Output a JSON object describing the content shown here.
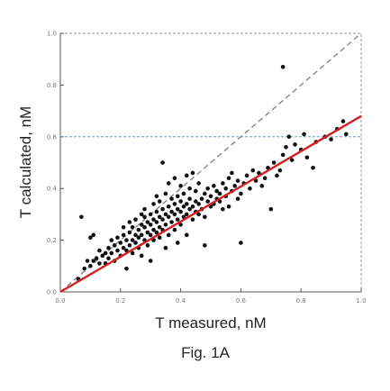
{
  "chart_data": {
    "type": "scatter",
    "title": "",
    "caption": "Fig. 1A",
    "xlabel": "T measured, nM",
    "ylabel": "T calculated, nM",
    "xlim": [
      0.0,
      1.0
    ],
    "ylim": [
      0.0,
      1.0
    ],
    "x_ticks": [
      "0.0",
      "0.2",
      "0.4",
      "0.6",
      "0.8",
      "1.0"
    ],
    "y_ticks": [
      "0.0",
      "0.2",
      "0.4",
      "0.6",
      "0.8",
      "1.0"
    ],
    "grid": false,
    "reference_lines": [
      {
        "kind": "identity",
        "style": "dashed",
        "color": "#888888",
        "from": [
          0.0,
          0.0
        ],
        "to": [
          1.0,
          1.0
        ]
      },
      {
        "kind": "regression",
        "style": "solid",
        "color": "#d42020",
        "from": [
          0.0,
          0.0
        ],
        "to": [
          1.0,
          0.68
        ]
      },
      {
        "kind": "horizontal",
        "style": "dashed",
        "color": "#5b86c9",
        "y": 0.6
      }
    ],
    "points": [
      [
        0.06,
        0.05
      ],
      [
        0.07,
        0.29
      ],
      [
        0.08,
        0.09
      ],
      [
        0.09,
        0.12
      ],
      [
        0.1,
        0.21
      ],
      [
        0.1,
        0.1
      ],
      [
        0.11,
        0.22
      ],
      [
        0.11,
        0.12
      ],
      [
        0.12,
        0.13
      ],
      [
        0.13,
        0.11
      ],
      [
        0.13,
        0.16
      ],
      [
        0.14,
        0.14
      ],
      [
        0.15,
        0.15
      ],
      [
        0.15,
        0.11
      ],
      [
        0.16,
        0.13
      ],
      [
        0.16,
        0.17
      ],
      [
        0.17,
        0.15
      ],
      [
        0.17,
        0.2
      ],
      [
        0.18,
        0.12
      ],
      [
        0.18,
        0.18
      ],
      [
        0.19,
        0.16
      ],
      [
        0.19,
        0.21
      ],
      [
        0.2,
        0.14
      ],
      [
        0.2,
        0.19
      ],
      [
        0.21,
        0.17
      ],
      [
        0.21,
        0.22
      ],
      [
        0.21,
        0.25
      ],
      [
        0.22,
        0.16
      ],
      [
        0.22,
        0.2
      ],
      [
        0.22,
        0.09
      ],
      [
        0.23,
        0.18
      ],
      [
        0.23,
        0.23
      ],
      [
        0.23,
        0.27
      ],
      [
        0.24,
        0.2
      ],
      [
        0.24,
        0.15
      ],
      [
        0.24,
        0.25
      ],
      [
        0.25,
        0.22
      ],
      [
        0.25,
        0.19
      ],
      [
        0.25,
        0.28
      ],
      [
        0.26,
        0.24
      ],
      [
        0.26,
        0.17
      ],
      [
        0.26,
        0.21
      ],
      [
        0.27,
        0.26
      ],
      [
        0.27,
        0.22
      ],
      [
        0.27,
        0.3
      ],
      [
        0.27,
        0.14
      ],
      [
        0.28,
        0.25
      ],
      [
        0.28,
        0.2
      ],
      [
        0.28,
        0.29
      ],
      [
        0.28,
        0.32
      ],
      [
        0.29,
        0.23
      ],
      [
        0.29,
        0.27
      ],
      [
        0.29,
        0.18
      ],
      [
        0.3,
        0.26
      ],
      [
        0.3,
        0.22
      ],
      [
        0.3,
        0.3
      ],
      [
        0.3,
        0.12
      ],
      [
        0.31,
        0.28
      ],
      [
        0.31,
        0.24
      ],
      [
        0.31,
        0.34
      ],
      [
        0.31,
        0.2
      ],
      [
        0.32,
        0.27
      ],
      [
        0.32,
        0.23
      ],
      [
        0.32,
        0.31
      ],
      [
        0.32,
        0.37
      ],
      [
        0.33,
        0.29
      ],
      [
        0.33,
        0.25
      ],
      [
        0.33,
        0.21
      ],
      [
        0.33,
        0.35
      ],
      [
        0.34,
        0.28
      ],
      [
        0.34,
        0.32
      ],
      [
        0.34,
        0.24
      ],
      [
        0.34,
        0.5
      ],
      [
        0.35,
        0.3
      ],
      [
        0.35,
        0.26
      ],
      [
        0.35,
        0.38
      ],
      [
        0.35,
        0.17
      ],
      [
        0.36,
        0.29
      ],
      [
        0.36,
        0.33
      ],
      [
        0.36,
        0.22
      ],
      [
        0.36,
        0.42
      ],
      [
        0.37,
        0.31
      ],
      [
        0.37,
        0.27
      ],
      [
        0.37,
        0.36
      ],
      [
        0.38,
        0.3
      ],
      [
        0.38,
        0.34
      ],
      [
        0.38,
        0.24
      ],
      [
        0.38,
        0.44
      ],
      [
        0.39,
        0.32
      ],
      [
        0.39,
        0.28
      ],
      [
        0.39,
        0.37
      ],
      [
        0.39,
        0.19
      ],
      [
        0.4,
        0.31
      ],
      [
        0.4,
        0.35
      ],
      [
        0.4,
        0.26
      ],
      [
        0.4,
        0.41
      ],
      [
        0.41,
        0.33
      ],
      [
        0.41,
        0.29
      ],
      [
        0.41,
        0.38
      ],
      [
        0.42,
        0.34
      ],
      [
        0.42,
        0.3
      ],
      [
        0.42,
        0.45
      ],
      [
        0.42,
        0.22
      ],
      [
        0.43,
        0.32
      ],
      [
        0.43,
        0.36
      ],
      [
        0.43,
        0.4
      ],
      [
        0.44,
        0.33
      ],
      [
        0.44,
        0.28
      ],
      [
        0.44,
        0.46
      ],
      [
        0.45,
        0.35
      ],
      [
        0.45,
        0.31
      ],
      [
        0.45,
        0.39
      ],
      [
        0.46,
        0.34
      ],
      [
        0.46,
        0.3
      ],
      [
        0.46,
        0.42
      ],
      [
        0.47,
        0.36
      ],
      [
        0.47,
        0.32
      ],
      [
        0.48,
        0.38
      ],
      [
        0.48,
        0.29
      ],
      [
        0.48,
        0.18
      ],
      [
        0.49,
        0.35
      ],
      [
        0.49,
        0.4
      ],
      [
        0.5,
        0.33
      ],
      [
        0.5,
        0.37
      ],
      [
        0.51,
        0.34
      ],
      [
        0.51,
        0.41
      ],
      [
        0.52,
        0.36
      ],
      [
        0.52,
        0.39
      ],
      [
        0.53,
        0.38
      ],
      [
        0.53,
        0.35
      ],
      [
        0.54,
        0.42
      ],
      [
        0.54,
        0.32
      ],
      [
        0.55,
        0.4
      ],
      [
        0.55,
        0.37
      ],
      [
        0.56,
        0.44
      ],
      [
        0.56,
        0.33
      ],
      [
        0.57,
        0.39
      ],
      [
        0.57,
        0.46
      ],
      [
        0.58,
        0.41
      ],
      [
        0.59,
        0.36
      ],
      [
        0.59,
        0.43
      ],
      [
        0.6,
        0.38
      ],
      [
        0.6,
        0.19
      ],
      [
        0.61,
        0.42
      ],
      [
        0.62,
        0.45
      ],
      [
        0.63,
        0.4
      ],
      [
        0.64,
        0.47
      ],
      [
        0.65,
        0.43
      ],
      [
        0.66,
        0.46
      ],
      [
        0.67,
        0.41
      ],
      [
        0.68,
        0.44
      ],
      [
        0.69,
        0.48
      ],
      [
        0.7,
        0.32
      ],
      [
        0.71,
        0.5
      ],
      [
        0.72,
        0.45
      ],
      [
        0.73,
        0.47
      ],
      [
        0.74,
        0.87
      ],
      [
        0.74,
        0.53
      ],
      [
        0.75,
        0.56
      ],
      [
        0.76,
        0.6
      ],
      [
        0.77,
        0.51
      ],
      [
        0.78,
        0.57
      ],
      [
        0.8,
        0.55
      ],
      [
        0.81,
        0.61
      ],
      [
        0.82,
        0.52
      ],
      [
        0.84,
        0.48
      ],
      [
        0.85,
        0.58
      ],
      [
        0.88,
        0.6
      ],
      [
        0.9,
        0.59
      ],
      [
        0.92,
        0.63
      ],
      [
        0.94,
        0.66
      ],
      [
        0.95,
        0.61
      ]
    ]
  }
}
